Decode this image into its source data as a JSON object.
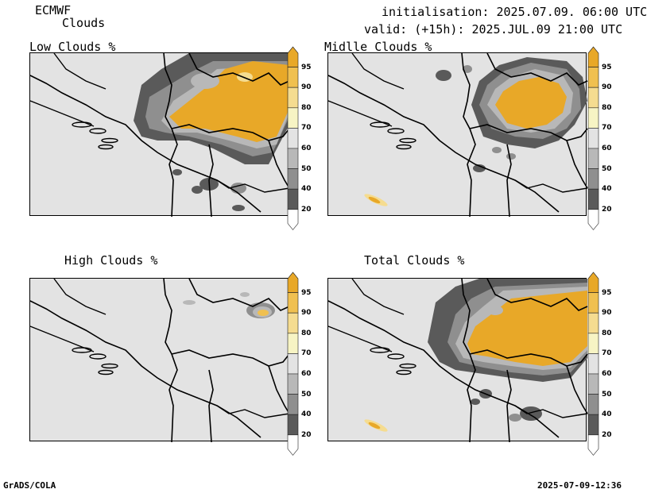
{
  "header": {
    "model": "ECMWF",
    "product": "Clouds",
    "init": "initialisation: 2025.07.09. 06:00 UTC",
    "valid": "valid: (+15h): 2025.JUL.09 21:00 UTC"
  },
  "panels": [
    {
      "title": "Low Clouds %"
    },
    {
      "title": "Midlle Clouds %"
    },
    {
      "title": "High Clouds %"
    },
    {
      "title": "Total Clouds %"
    }
  ],
  "colorbar": {
    "labels": [
      "95",
      "90",
      "80",
      "70",
      "60",
      "50",
      "40",
      "20"
    ],
    "colors": [
      "#e8a828",
      "#f0c050",
      "#f5dc90",
      "#f7f4c4",
      "#e3e3e3",
      "#b8b8b8",
      "#8f8f8f",
      "#5a5a5a",
      "#ffffff"
    ]
  },
  "footer": {
    "left": "GrADS/COLA",
    "right": "2025-07-09-12:36"
  }
}
